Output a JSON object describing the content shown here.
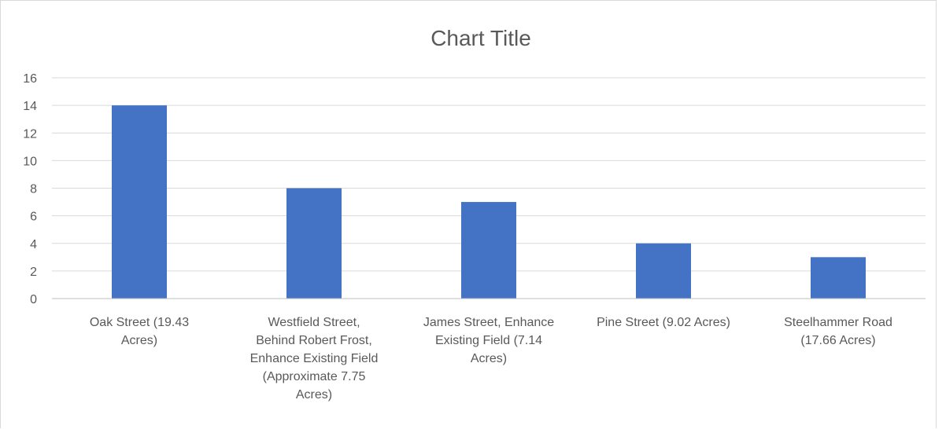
{
  "chart_data": {
    "type": "bar",
    "title": "Chart Title",
    "categories": [
      "Oak Street (19.43 Acres)",
      "Westfield Street, Behind Robert Frost, Enhance Existing Field (Approximate 7.75 Acres)",
      "James Street, Enhance Existing Field (7.14 Acres)",
      "Pine Street (9.02 Acres)",
      "Steelhammer Road (17.66 Acres)"
    ],
    "category_label_lines": [
      [
        "Oak Street (19.43",
        "Acres)"
      ],
      [
        "Westfield Street,",
        "Behind Robert Frost,",
        "Enhance Existing Field",
        "(Approximate 7.75",
        "Acres)"
      ],
      [
        "James Street, Enhance",
        "Existing Field (7.14",
        "Acres)"
      ],
      [
        "Pine Street (9.02 Acres)"
      ],
      [
        "Steelhammer Road",
        "(17.66 Acres)"
      ]
    ],
    "values": [
      14,
      8,
      7,
      4,
      3
    ],
    "ylim": [
      0,
      16
    ],
    "yticks": [
      0,
      2,
      4,
      6,
      8,
      10,
      12,
      14,
      16
    ],
    "grid": true,
    "legend": "none",
    "bar_color": "#4472C4"
  }
}
